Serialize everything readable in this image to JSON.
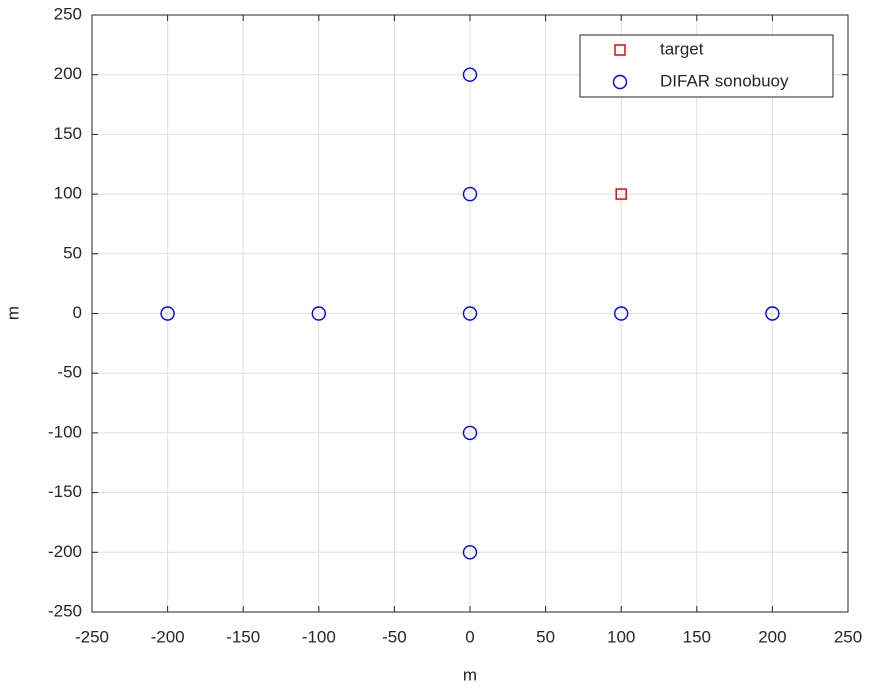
{
  "chart_data": {
    "type": "scatter",
    "xlabel": "m",
    "ylabel": "m",
    "xlim": [
      -250,
      250
    ],
    "ylim": [
      -250,
      250
    ],
    "xticks": [
      -250,
      -200,
      -150,
      -100,
      -50,
      0,
      50,
      100,
      150,
      200,
      250
    ],
    "yticks": [
      -250,
      -200,
      -150,
      -100,
      -50,
      0,
      50,
      100,
      150,
      200,
      250
    ],
    "grid": true,
    "legend": "northeast",
    "series": [
      {
        "name": "target",
        "color": "#cc0000",
        "marker": "square",
        "x": [
          100
        ],
        "values": [
          100
        ]
      },
      {
        "name": "DIFAR sonobuoy",
        "color": "#0000ff",
        "marker": "circle",
        "x": [
          0,
          0,
          -200,
          -100,
          0,
          100,
          200,
          0,
          0
        ],
        "values": [
          200,
          100,
          0,
          0,
          0,
          0,
          0,
          -100,
          -200
        ]
      }
    ]
  }
}
